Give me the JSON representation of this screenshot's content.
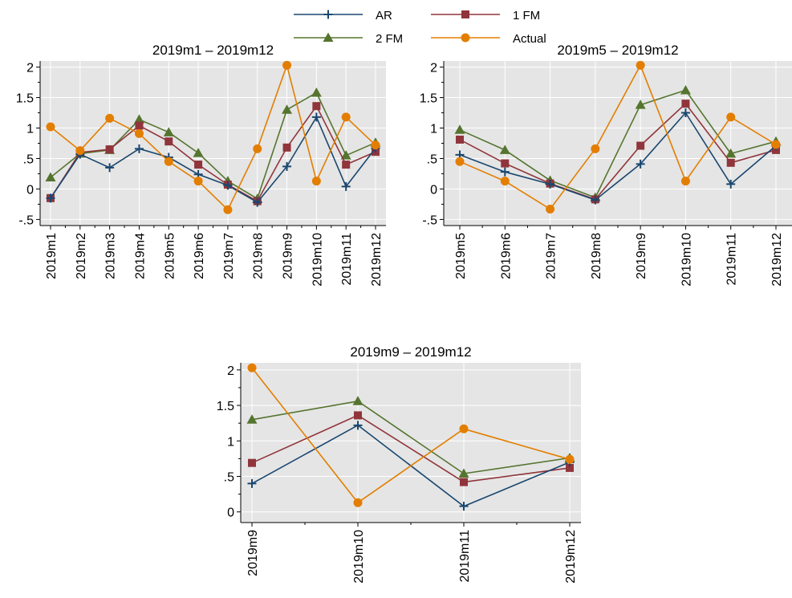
{
  "legend": {
    "placement": "top-center",
    "entries": [
      {
        "name": "AR",
        "color": "#1a476f",
        "marker": "plus"
      },
      {
        "name": "1 FM",
        "color": "#90353b",
        "marker": "square"
      },
      {
        "name": "2 FM",
        "color": "#55752f",
        "marker": "triangle"
      },
      {
        "name": "Actual",
        "color": "#e37e00",
        "marker": "circle"
      }
    ]
  },
  "chart_data": [
    {
      "type": "line",
      "title": "2019m1 – 2019m12",
      "categories": [
        "2019m1",
        "2019m2",
        "2019m3",
        "2019m4",
        "2019m5",
        "2019m6",
        "2019m7",
        "2019m8",
        "2019m9",
        "2019m10",
        "2019m11",
        "2019m12"
      ],
      "ylim": [
        -0.6,
        2.1
      ],
      "yticks": [
        {
          "v": -0.5,
          "label": "-.5"
        },
        {
          "v": 0,
          "label": "0"
        },
        {
          "v": 0.5,
          "label": ".5"
        },
        {
          "v": 1,
          "label": "1"
        },
        {
          "v": 1.5,
          "label": "1.5"
        },
        {
          "v": 2,
          "label": "2"
        }
      ],
      "grid": true,
      "series": [
        {
          "name": "AR",
          "values": [
            -0.15,
            0.57,
            0.35,
            0.66,
            0.52,
            0.24,
            0.06,
            -0.22,
            0.37,
            1.18,
            0.04,
            0.67
          ]
        },
        {
          "name": "1 FM",
          "values": [
            -0.15,
            0.6,
            0.65,
            1.04,
            0.78,
            0.4,
            0.07,
            -0.2,
            0.68,
            1.36,
            0.4,
            0.61
          ]
        },
        {
          "name": "2 FM",
          "values": [
            0.19,
            0.58,
            0.64,
            1.14,
            0.93,
            0.59,
            0.13,
            -0.16,
            1.3,
            1.58,
            0.55,
            0.76
          ]
        },
        {
          "name": "Actual",
          "values": [
            1.02,
            0.63,
            1.16,
            0.91,
            0.45,
            0.13,
            -0.34,
            0.66,
            2.03,
            0.13,
            1.18,
            0.72
          ]
        }
      ]
    },
    {
      "type": "line",
      "title": "2019m5 – 2019m12",
      "categories": [
        "2019m5",
        "2019m6",
        "2019m7",
        "2019m8",
        "2019m9",
        "2019m10",
        "2019m11",
        "2019m12"
      ],
      "ylim": [
        -0.6,
        2.1
      ],
      "yticks": [
        {
          "v": -0.5,
          "label": "-.5"
        },
        {
          "v": 0,
          "label": "0"
        },
        {
          "v": 0.5,
          "label": ".5"
        },
        {
          "v": 1,
          "label": "1"
        },
        {
          "v": 1.5,
          "label": "1.5"
        },
        {
          "v": 2,
          "label": "2"
        }
      ],
      "grid": true,
      "series": [
        {
          "name": "AR",
          "values": [
            0.56,
            0.28,
            0.08,
            -0.18,
            0.41,
            1.25,
            0.08,
            0.71
          ]
        },
        {
          "name": "1 FM",
          "values": [
            0.81,
            0.42,
            0.09,
            -0.17,
            0.71,
            1.4,
            0.43,
            0.64
          ]
        },
        {
          "name": "2 FM",
          "values": [
            0.97,
            0.64,
            0.14,
            -0.14,
            1.38,
            1.62,
            0.58,
            0.78
          ]
        },
        {
          "name": "Actual",
          "values": [
            0.45,
            0.13,
            -0.33,
            0.66,
            2.03,
            0.13,
            1.18,
            0.73
          ]
        }
      ]
    },
    {
      "type": "line",
      "title": "2019m9 – 2019m12",
      "categories": [
        "2019m9",
        "2019m10",
        "2019m11",
        "2019m12"
      ],
      "ylim": [
        -0.15,
        2.1
      ],
      "yticks": [
        {
          "v": 0,
          "label": "0"
        },
        {
          "v": 0.5,
          "label": ".5"
        },
        {
          "v": 1,
          "label": "1"
        },
        {
          "v": 1.5,
          "label": "1.5"
        },
        {
          "v": 2,
          "label": "2"
        }
      ],
      "grid": true,
      "series": [
        {
          "name": "AR",
          "values": [
            0.4,
            1.22,
            0.08,
            0.7
          ]
        },
        {
          "name": "1 FM",
          "values": [
            0.69,
            1.36,
            0.42,
            0.62
          ]
        },
        {
          "name": "2 FM",
          "values": [
            1.3,
            1.56,
            0.54,
            0.76
          ]
        },
        {
          "name": "Actual",
          "values": [
            2.03,
            0.13,
            1.17,
            0.74
          ]
        }
      ]
    }
  ]
}
